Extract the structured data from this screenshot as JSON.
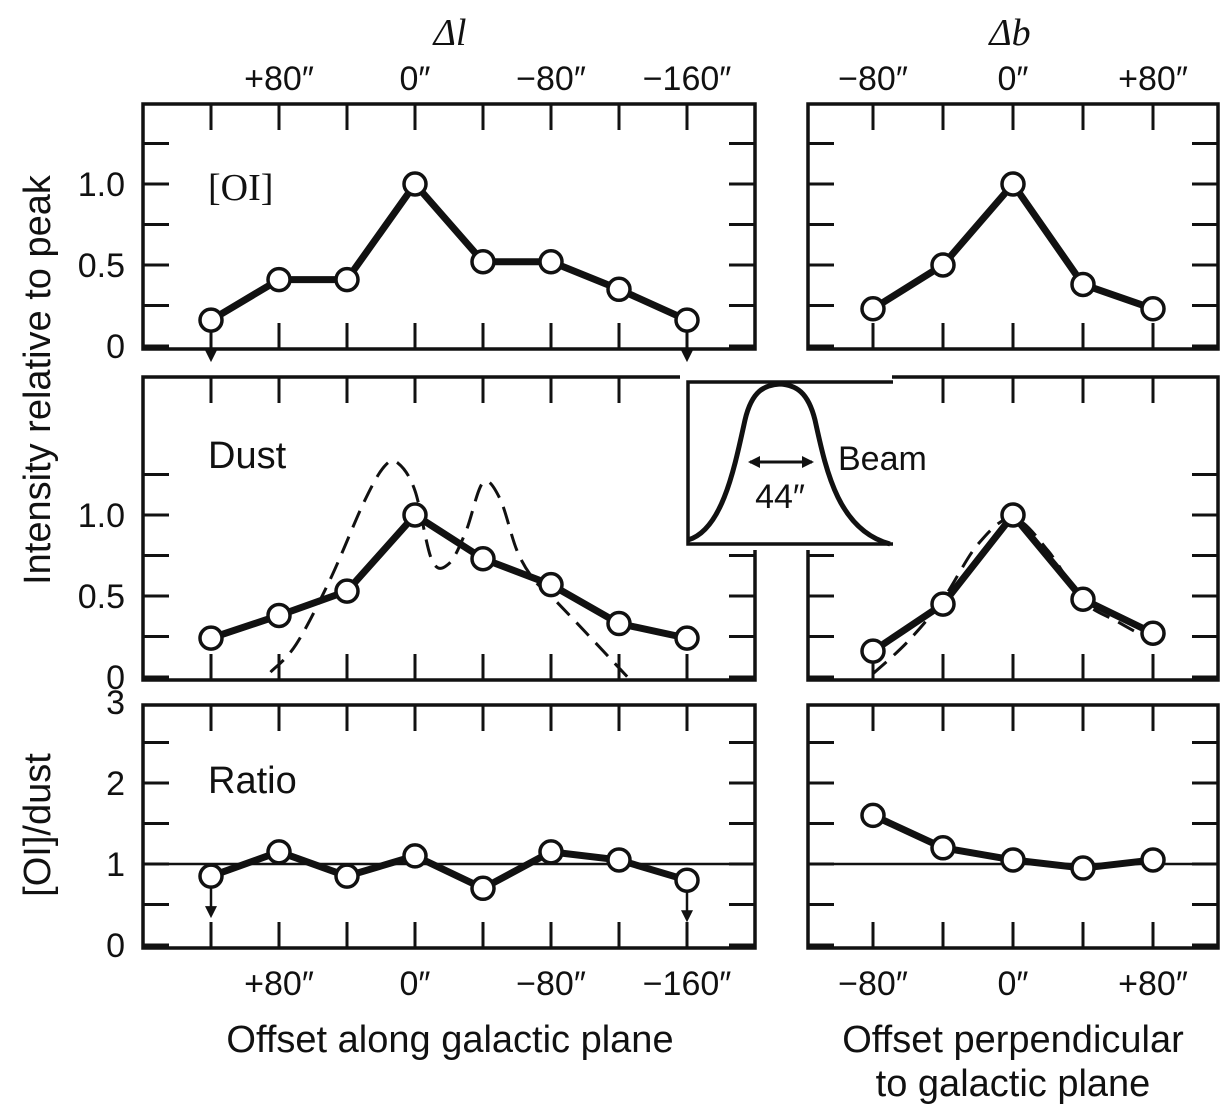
{
  "chart_data": {
    "type": "line",
    "top_axis": {
      "left_label": "Δl",
      "right_label": "Δb",
      "left_ticks": [
        "+80″",
        "0″",
        "−80″",
        "−160″"
      ],
      "right_ticks": [
        "−80″",
        "0″",
        "+80″"
      ]
    },
    "bottom_axis": {
      "left_ticks": [
        "+80″",
        "0″",
        "−80″",
        "−160″"
      ],
      "right_ticks": [
        "−80″",
        "0″",
        "+80″"
      ],
      "left_xlabel": "Offset along galactic plane",
      "right_xlabel_line1": "Offset perpendicular",
      "right_xlabel_line2": "to galactic plane"
    },
    "ylabel_top": "Intensity relative to peak",
    "ylabel_bottom": "[OI]/dust",
    "x_along": [
      120,
      80,
      40,
      0,
      -40,
      -80,
      -120,
      -160
    ],
    "x_perp": [
      -80,
      -40,
      0,
      40,
      80
    ],
    "panels": [
      {
        "id": "oi-along",
        "label": "[OI]",
        "yticks": [
          "0",
          "0.5",
          "1.0"
        ],
        "ylim": [
          0,
          1.45
        ],
        "values": [
          0.16,
          0.41,
          0.41,
          1.0,
          0.52,
          0.52,
          0.35,
          0.16
        ],
        "upper_limits": [
          0,
          7
        ]
      },
      {
        "id": "oi-perp",
        "values": [
          0.23,
          0.5,
          1.0,
          0.38,
          0.23
        ],
        "upper_limits": []
      },
      {
        "id": "dust-along",
        "label": "Dust",
        "yticks": [
          "0",
          "0.5",
          "1.0"
        ],
        "ylim": [
          0,
          1.45
        ],
        "values": [
          0.24,
          0.38,
          0.53,
          1.0,
          0.73,
          0.57,
          0.33,
          0.24
        ],
        "model_dashed": {
          "x": [
            85,
            70,
            50,
            30,
            18,
            10,
            0,
            -10,
            -20,
            -30,
            -40,
            -50,
            -60,
            -70,
            -80,
            -100,
            -125
          ],
          "y": [
            0.03,
            0.2,
            0.6,
            1.08,
            1.3,
            1.32,
            1.15,
            0.72,
            0.7,
            0.9,
            1.2,
            1.1,
            0.78,
            0.6,
            0.5,
            0.28,
            0.0
          ]
        }
      },
      {
        "id": "dust-perp",
        "values": [
          0.16,
          0.45,
          1.0,
          0.48,
          0.27
        ],
        "model_dashed": {
          "x": [
            -80,
            -60,
            -40,
            -20,
            0,
            20,
            40,
            60,
            80
          ],
          "y": [
            0.02,
            0.22,
            0.48,
            0.82,
            0.98,
            0.78,
            0.47,
            0.34,
            0.22
          ]
        }
      },
      {
        "id": "ratio-along",
        "label": "Ratio",
        "yticks": [
          "0",
          "1",
          "2",
          "3"
        ],
        "ylim": [
          0,
          3
        ],
        "reference_line": 1,
        "values": [
          0.85,
          1.15,
          0.85,
          1.1,
          0.7,
          1.15,
          1.05,
          0.8
        ],
        "upper_limits": [
          0,
          7
        ]
      },
      {
        "id": "ratio-perp",
        "values": [
          1.6,
          1.2,
          1.05,
          0.95,
          1.05
        ],
        "upper_limits": []
      }
    ],
    "inset": {
      "label": "Beam",
      "width_label": "44″"
    }
  }
}
